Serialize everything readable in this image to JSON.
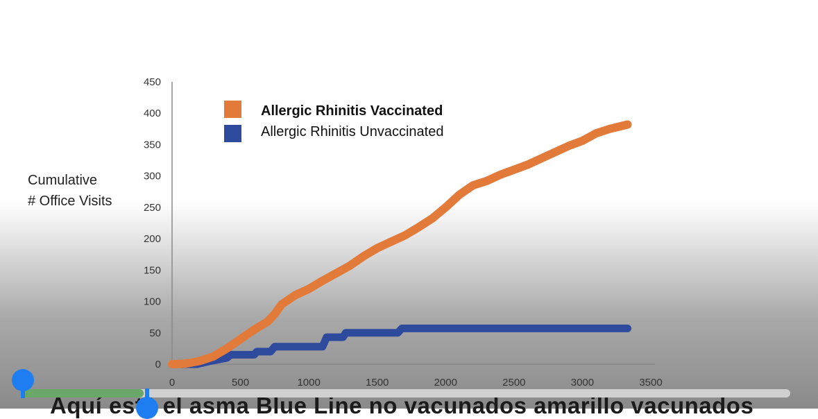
{
  "colors": {
    "vaccinated": "#e27a3a",
    "unvaccinated": "#2e4a9c",
    "axis": "#888888",
    "player_accent": "#1e7df0",
    "player_progress": "#6aa86a"
  },
  "caption": {
    "text": "Aquí está el asma Blue Line no vacunados amarillo vacunados"
  },
  "player": {
    "start_handle_icon": "selection-start-handle-icon",
    "end_handle_icon": "selection-end-handle-icon",
    "progress": 0.16
  },
  "chart_data": {
    "type": "line",
    "title": "",
    "ylabel_lines": [
      "Cumulative",
      "# Office Visits"
    ],
    "xlabel": "",
    "xlim": [
      0,
      3500
    ],
    "ylim": [
      0,
      450
    ],
    "x_ticks": [
      "0",
      "500",
      "1000",
      "1500",
      "2000",
      "2500",
      "3000",
      "3500"
    ],
    "y_ticks": [
      "0",
      "50",
      "100",
      "150",
      "200",
      "250",
      "300",
      "350",
      "400",
      "450"
    ],
    "grid": false,
    "legend_position": "top-left",
    "series": [
      {
        "name": "Allergic Rhinitis Vaccinated",
        "color": "#e27a3a",
        "points": [
          [
            0,
            0
          ],
          [
            100,
            1
          ],
          [
            200,
            5
          ],
          [
            300,
            12
          ],
          [
            400,
            25
          ],
          [
            500,
            40
          ],
          [
            600,
            55
          ],
          [
            700,
            68
          ],
          [
            750,
            80
          ],
          [
            800,
            95
          ],
          [
            900,
            110
          ],
          [
            1000,
            120
          ],
          [
            1100,
            133
          ],
          [
            1200,
            145
          ],
          [
            1300,
            157
          ],
          [
            1400,
            172
          ],
          [
            1500,
            185
          ],
          [
            1600,
            195
          ],
          [
            1700,
            205
          ],
          [
            1800,
            218
          ],
          [
            1900,
            232
          ],
          [
            2000,
            250
          ],
          [
            2100,
            270
          ],
          [
            2200,
            285
          ],
          [
            2300,
            292
          ],
          [
            2400,
            302
          ],
          [
            2500,
            310
          ],
          [
            2600,
            318
          ],
          [
            2700,
            328
          ],
          [
            2800,
            338
          ],
          [
            2900,
            348
          ],
          [
            3000,
            356
          ],
          [
            3100,
            368
          ],
          [
            3200,
            375
          ],
          [
            3330,
            382
          ]
        ]
      },
      {
        "name": "Allergic Rhinitis Unvaccinated",
        "color": "#2e4a9c",
        "points": [
          [
            0,
            0
          ],
          [
            180,
            0
          ],
          [
            280,
            5
          ],
          [
            400,
            10
          ],
          [
            430,
            15
          ],
          [
            600,
            15
          ],
          [
            620,
            20
          ],
          [
            720,
            20
          ],
          [
            750,
            28
          ],
          [
            1100,
            28
          ],
          [
            1130,
            43
          ],
          [
            1250,
            43
          ],
          [
            1270,
            50
          ],
          [
            1650,
            50
          ],
          [
            1680,
            57
          ],
          [
            3330,
            57
          ]
        ]
      }
    ]
  }
}
